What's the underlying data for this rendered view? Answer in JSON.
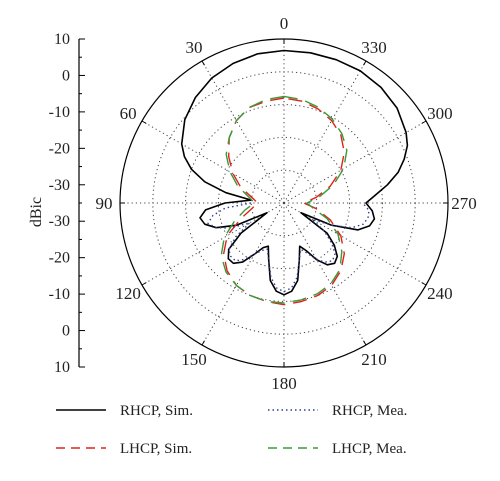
{
  "chart_data": {
    "type": "polar-line",
    "ylabel": "dBic",
    "angle_labels": [
      "0",
      "30",
      "60",
      "90",
      "120",
      "150",
      "180",
      "210",
      "240",
      "270",
      "300",
      "330"
    ],
    "angle_values_deg": [
      0,
      30,
      60,
      90,
      120,
      150,
      180,
      210,
      240,
      270,
      300,
      330
    ],
    "angle_direction": "counterclockwise",
    "radial_range_dB": [
      -40,
      10
    ],
    "radial_ticks": [
      10,
      0,
      -10,
      -20,
      -30,
      -40
    ],
    "left_axis_tick_labels": [
      "10",
      "0",
      "-10",
      "-20",
      "-30",
      "-30",
      "-20",
      "-10",
      "0",
      "10"
    ],
    "grid": "dotted",
    "legend_position": "bottom",
    "series": [
      {
        "name": "RHCP, Sim.",
        "color": "#000000",
        "dash": "solid",
        "angles": [
          0,
          10,
          20,
          30,
          40,
          50,
          60,
          65,
          70,
          75,
          80,
          85,
          90,
          95,
          100,
          105,
          110,
          115,
          120,
          125,
          130,
          135,
          140,
          145,
          150,
          155,
          160,
          165,
          170,
          175,
          180,
          185,
          190,
          195,
          200,
          205,
          210,
          215,
          220,
          225,
          230,
          235,
          240,
          245,
          250,
          255,
          260,
          265,
          270,
          275,
          280,
          285,
          290,
          295,
          300,
          310,
          320,
          330,
          340,
          350,
          360
        ],
        "values": [
          6.5,
          6.2,
          5.3,
          4,
          2,
          -0.5,
          -4,
          -6.5,
          -10,
          -15,
          -22,
          -30,
          -22,
          -16,
          -14,
          -15,
          -18,
          -24,
          -34,
          -24,
          -18,
          -16,
          -16,
          -18,
          -22,
          -25,
          -26,
          -22,
          -16,
          -13,
          -12,
          -13,
          -16,
          -22,
          -26,
          -24,
          -20,
          -17,
          -16,
          -17,
          -20,
          -24,
          -34,
          -24,
          -16,
          -13,
          -12,
          -13,
          -15,
          -12,
          -8,
          -4,
          -1,
          1.5,
          3,
          5,
          6,
          6.5,
          6.5,
          6.5,
          6.5
        ]
      },
      {
        "name": "LHCP, Sim.",
        "color": "#e0221c",
        "dash": "dashed",
        "angles": [
          0,
          10,
          20,
          30,
          40,
          50,
          60,
          70,
          80,
          90,
          100,
          110,
          120,
          130,
          140,
          150,
          160,
          170,
          180,
          190,
          200,
          210,
          220,
          230,
          240,
          250,
          260,
          270,
          280,
          290,
          300,
          310,
          320,
          330,
          340,
          350,
          360
        ],
        "values": [
          -8,
          -8.5,
          -9,
          -11,
          -14,
          -18,
          -22,
          -26,
          -30,
          -32,
          -30,
          -26,
          -20,
          -16,
          -13,
          -11,
          -10,
          -9.5,
          -9,
          -9.5,
          -10,
          -11,
          -13,
          -16,
          -20,
          -25,
          -30,
          -34,
          -30,
          -25,
          -20,
          -16,
          -13,
          -11,
          -9.5,
          -8.5,
          -8
        ]
      },
      {
        "name": "RHCP, Mea.",
        "color": "#2f3f9a",
        "dash": "dotted",
        "angles": [
          90,
          95,
          100,
          105,
          110,
          115,
          120,
          125,
          130,
          135,
          140,
          145,
          150,
          155,
          160,
          165,
          170,
          175,
          180,
          185,
          190,
          195,
          200,
          205,
          210,
          215,
          220,
          225,
          230,
          235,
          240,
          245,
          250,
          255,
          260,
          265,
          270
        ],
        "values": [
          -30,
          -22,
          -18,
          -16,
          -18,
          -22,
          -28,
          -22,
          -18,
          -17,
          -17,
          -19,
          -22,
          -24,
          -25,
          -22,
          -17,
          -14,
          -13,
          -14,
          -17,
          -22,
          -25,
          -23,
          -20,
          -18,
          -17,
          -18,
          -21,
          -25,
          -30,
          -24,
          -18,
          -15,
          -14,
          -14,
          -16
        ]
      },
      {
        "name": "LHCP, Mea.",
        "color": "#3a9a3a",
        "dash": "dashed",
        "angles": [
          0,
          10,
          20,
          30,
          40,
          50,
          60,
          70,
          80,
          90,
          100,
          110,
          120,
          130,
          140,
          150,
          160,
          170,
          180,
          190,
          200,
          210,
          220,
          230,
          240,
          250,
          260,
          270,
          280,
          290,
          300,
          310,
          320,
          330,
          340,
          350,
          360
        ],
        "values": [
          -7.5,
          -8,
          -9,
          -11,
          -14,
          -17,
          -21,
          -25,
          -29,
          -31,
          -28,
          -24,
          -19,
          -15,
          -12.5,
          -11,
          -10,
          -9.5,
          -9.5,
          -10,
          -10.5,
          -11.5,
          -13.5,
          -17,
          -21,
          -26,
          -31,
          -33,
          -29,
          -24,
          -19,
          -15,
          -12.5,
          -10.5,
          -9,
          -8,
          -7.5
        ]
      }
    ]
  }
}
